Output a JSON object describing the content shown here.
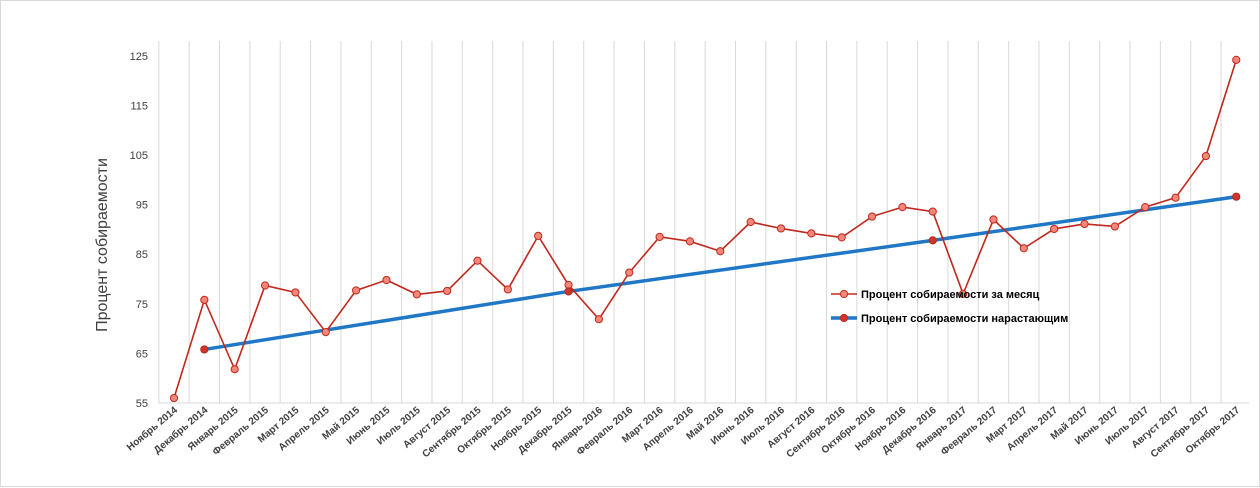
{
  "chart_data": {
    "type": "line",
    "title": "",
    "xlabel": "",
    "ylabel": "Процент собираемости",
    "ylim": [
      55,
      128
    ],
    "yticks": [
      55,
      65,
      75,
      85,
      95,
      105,
      115,
      125
    ],
    "grid": "vertical",
    "legend_position": "right-center",
    "categories": [
      "Ноябрь 2014",
      "Декабрь 2014",
      "Январь 2015",
      "Февраль 2015",
      "Март 2015",
      "Апрель 2015",
      "Май 2015",
      "Июнь 2015",
      "Июль 2015",
      "Август 2015",
      "Сентябрь 2015",
      "Октябрь 2015",
      "Ноябрь 2015",
      "Декабрь 2015",
      "Январь 2016",
      "Февраль 2016",
      "Март 2016",
      "Апрель 2016",
      "Май 2016",
      "Июнь 2016",
      "Июль 2016",
      "Август 2016",
      "Сентябрь 2016",
      "Октябрь 2016",
      "Ноябрь 2016",
      "Декабрь 2016",
      "Январь 2017",
      "Февраль 2017",
      "Март 2017",
      "Апрель 2017",
      "Май 2017",
      "Июнь 2017",
      "Июль 2017",
      "Август 2017",
      "Сентябрь 2017",
      "Октябрь 2017"
    ],
    "series": [
      {
        "name": "Процент собираемости  за месяц",
        "color": "#c0281c",
        "marker_fill": "#f4877a",
        "values": [
          56,
          75.8,
          61.8,
          78.7,
          77.3,
          69.3,
          77.7,
          79.8,
          76.9,
          77.6,
          83.7,
          77.9,
          88.7,
          78.8,
          71.9,
          81.3,
          88.5,
          87.6,
          85.6,
          91.5,
          90.2,
          89.2,
          88.4,
          92.6,
          94.5,
          93.6,
          77,
          92,
          86.2,
          90.1,
          91.1,
          90.6,
          94.5,
          96.4,
          104.8,
          124.2
        ]
      },
      {
        "name": "Процент собираемости  нарастающим",
        "color": "#1f77c6",
        "marker_fill": "#d0352b",
        "values": [
          null,
          65.8,
          null,
          null,
          null,
          null,
          null,
          null,
          null,
          null,
          null,
          null,
          null,
          77.5,
          null,
          null,
          null,
          null,
          null,
          null,
          null,
          null,
          null,
          null,
          null,
          87.8,
          null,
          null,
          null,
          null,
          null,
          null,
          null,
          null,
          null,
          96.6
        ]
      }
    ]
  }
}
